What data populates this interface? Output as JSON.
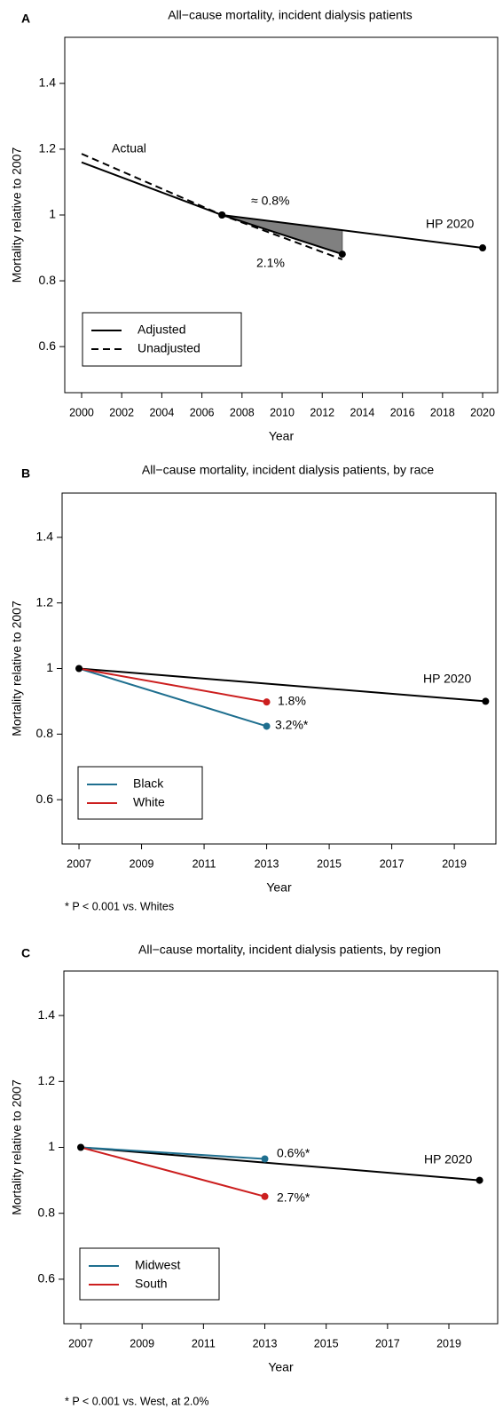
{
  "chart_data": [
    {
      "type": "line",
      "panel": "A",
      "title": "All−cause mortality, incident dialysis patients",
      "x_label": "Year",
      "y_label": "Mortality relative to 2007",
      "xlim": [
        1999.16,
        2020.75
      ],
      "xticks": [
        2000,
        2002,
        2004,
        2006,
        2008,
        2010,
        2012,
        2014,
        2016,
        2018,
        2020
      ],
      "ylim": [
        0.46,
        1.54
      ],
      "yticks": [
        0.6,
        0.8,
        1,
        1.2,
        1.4
      ],
      "legend": "bottom-left",
      "shade_gap": true,
      "series": [
        {
          "name": "Adjusted",
          "color": "#000000",
          "dash": "solid",
          "x": [
            2000,
            2007,
            2013
          ],
          "values": [
            1.16,
            1.0,
            0.881
          ],
          "markers": [
            false,
            true,
            true
          ],
          "in_legend": true
        },
        {
          "name": "Unadjusted",
          "color": "#000000",
          "dash": "dashed",
          "x": [
            2000,
            2007,
            2013
          ],
          "values": [
            1.186,
            1.0,
            0.865
          ],
          "markers": [
            false,
            false,
            false
          ],
          "in_legend": true
        },
        {
          "name": "HP 2020",
          "color": "#000000",
          "dash": "solid",
          "x": [
            2007,
            2020
          ],
          "values": [
            1.0,
            0.9
          ],
          "markers": [
            true,
            true
          ],
          "in_legend": false
        }
      ],
      "annotations": [
        {
          "text": "Actual",
          "color": "#000000"
        },
        {
          "text": "≈ 0.8%",
          "color": "#000000"
        },
        {
          "text": "2.1%",
          "color": "#000000"
        },
        {
          "text": "HP 2020",
          "color": "#000000"
        }
      ]
    },
    {
      "type": "line",
      "panel": "B",
      "title": "All−cause mortality, incident dialysis patients, by race",
      "x_label": "Year",
      "y_label": "Mortality relative to 2007",
      "xlim": [
        2006.46,
        2020.33
      ],
      "xticks": [
        2007,
        2009,
        2011,
        2013,
        2015,
        2017,
        2019
      ],
      "ylim": [
        0.465,
        1.535
      ],
      "yticks": [
        0.6,
        0.8,
        1,
        1.2,
        1.4
      ],
      "legend": "bottom-left",
      "shade_gap": false,
      "series": [
        {
          "name": "HP 2020",
          "color": "#000000",
          "dash": "solid",
          "x": [
            2007,
            2020
          ],
          "values": [
            1.0,
            0.9
          ],
          "markers": [
            true,
            true
          ],
          "in_legend": false
        },
        {
          "name": "Black",
          "color": "#1f6f8f",
          "dash": "solid",
          "x": [
            2007,
            2013
          ],
          "values": [
            1.0,
            0.824
          ],
          "markers": [
            false,
            true
          ],
          "in_legend": true
        },
        {
          "name": "White",
          "color": "#cc1f1f",
          "dash": "solid",
          "x": [
            2007,
            2013
          ],
          "values": [
            1.0,
            0.898
          ],
          "markers": [
            false,
            true
          ],
          "in_legend": true
        }
      ],
      "annotations": [
        {
          "text": "HP 2020",
          "color": "#000000"
        },
        {
          "text": "1.8%",
          "color": "#cc1f1f"
        },
        {
          "text": "3.2%*",
          "color": "#1f6f8f"
        }
      ],
      "footnote": "* P < 0.001 vs. Whites"
    },
    {
      "type": "line",
      "panel": "C",
      "title": "All−cause mortality, incident dialysis patients, by region",
      "x_label": "Year",
      "y_label": "Mortality relative to 2007",
      "xlim": [
        2006.45,
        2020.59
      ],
      "xticks": [
        2007,
        2009,
        2011,
        2013,
        2015,
        2017,
        2019
      ],
      "ylim": [
        0.465,
        1.535
      ],
      "yticks": [
        0.6,
        0.8,
        1,
        1.2,
        1.4
      ],
      "legend": "bottom-left",
      "shade_gap": false,
      "series": [
        {
          "name": "HP 2020",
          "color": "#000000",
          "dash": "solid",
          "x": [
            2007,
            2020
          ],
          "values": [
            1.0,
            0.9
          ],
          "markers": [
            true,
            true
          ],
          "in_legend": false
        },
        {
          "name": "Midwest",
          "color": "#1f6f8f",
          "dash": "solid",
          "x": [
            2007,
            2013
          ],
          "values": [
            1.0,
            0.965
          ],
          "markers": [
            false,
            true
          ],
          "in_legend": true
        },
        {
          "name": "South",
          "color": "#cc1f1f",
          "dash": "solid",
          "x": [
            2007,
            2013
          ],
          "values": [
            1.0,
            0.851
          ],
          "markers": [
            false,
            true
          ],
          "in_legend": true
        }
      ],
      "annotations": [
        {
          "text": "0.6%*",
          "color": "#1f6f8f"
        },
        {
          "text": "2.7%*",
          "color": "#cc1f1f"
        },
        {
          "text": "HP 2020",
          "color": "#000000"
        }
      ],
      "footnote": "* P < 0.001 vs. West, at 2.0%"
    }
  ]
}
